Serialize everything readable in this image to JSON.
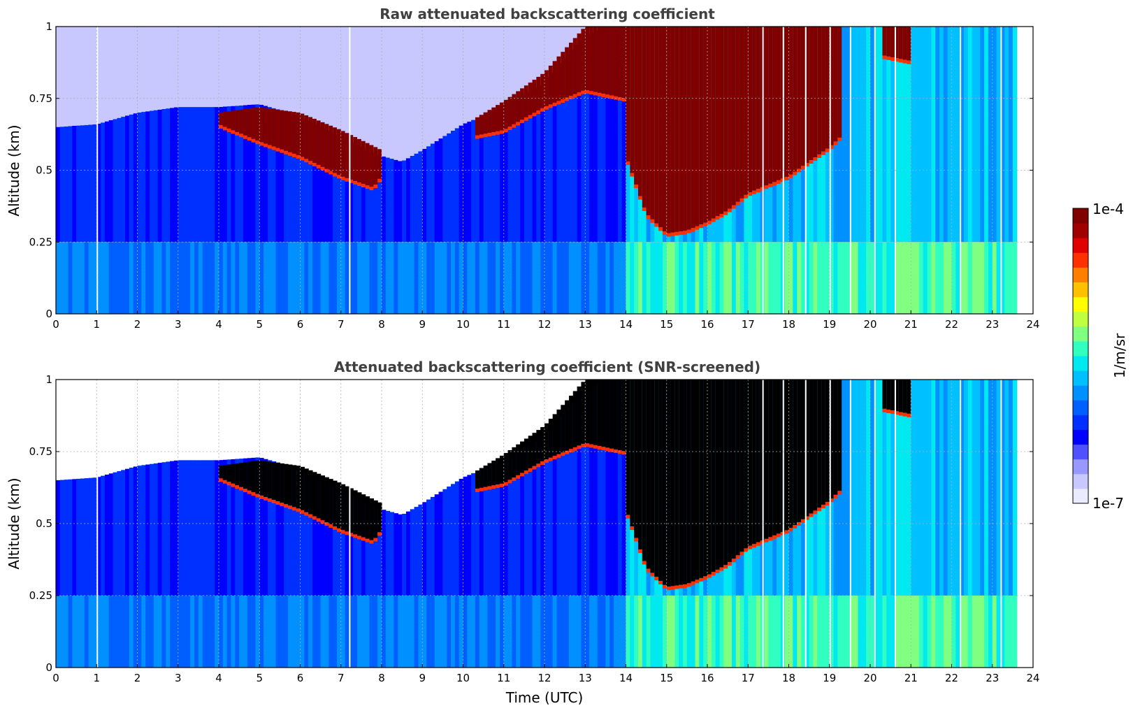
{
  "chart_data": [
    {
      "type": "heatmap",
      "title": "Raw attenuated backscattering coefficient",
      "xlabel": "",
      "ylabel": "Altitude (km)",
      "xlim": [
        0,
        24
      ],
      "ylim": [
        0,
        1
      ],
      "xticks": [
        "0",
        "1",
        "2",
        "3",
        "4",
        "5",
        "6",
        "7",
        "8",
        "9",
        "10",
        "11",
        "12",
        "13",
        "14",
        "15",
        "16",
        "17",
        "18",
        "19",
        "20",
        "21",
        "22",
        "23",
        "24"
      ],
      "yticks": [
        "0",
        "0.25",
        "0.5",
        "0.75",
        "1"
      ],
      "grid": true,
      "data_end_hour": 23.6,
      "screened": false,
      "features": {
        "boundary_layer_top_km": [
          [
            0,
            0.65
          ],
          [
            1,
            0.66
          ],
          [
            2,
            0.7
          ],
          [
            3,
            0.72
          ],
          [
            4,
            0.72
          ],
          [
            5,
            0.73
          ],
          [
            6,
            0.69
          ],
          [
            7,
            0.62
          ],
          [
            8,
            0.55
          ],
          [
            8.5,
            0.53
          ],
          [
            9,
            0.57
          ],
          [
            10,
            0.66
          ],
          [
            10.5,
            0.69
          ],
          [
            11,
            0.72
          ],
          [
            12,
            0.8
          ],
          [
            12.5,
            0.88
          ],
          [
            13,
            0.96
          ],
          [
            13.5,
            1.0
          ],
          [
            14,
            1.0
          ],
          [
            24,
            1.0
          ]
        ],
        "cloud_layers": [
          {
            "start_h": 4.0,
            "end_h": 8.0,
            "base_km": [
              [
                4,
                0.66
              ],
              [
                5,
                0.6
              ],
              [
                6,
                0.55
              ],
              [
                7,
                0.48
              ],
              [
                7.8,
                0.44
              ],
              [
                8,
                0.48
              ]
            ],
            "top_km": [
              [
                4,
                0.7
              ],
              [
                5,
                0.72
              ],
              [
                6,
                0.7
              ],
              [
                7,
                0.64
              ],
              [
                8,
                0.57
              ]
            ]
          },
          {
            "start_h": 10.3,
            "end_h": 14.0,
            "base_km": [
              [
                10.3,
                0.62
              ],
              [
                11,
                0.64
              ],
              [
                12,
                0.72
              ],
              [
                13,
                0.78
              ],
              [
                14,
                0.75
              ]
            ],
            "top_km": [
              [
                10.3,
                0.68
              ],
              [
                11,
                0.74
              ],
              [
                12,
                0.84
              ],
              [
                13,
                1.0
              ],
              [
                14,
                1.0
              ]
            ]
          },
          {
            "start_h": 14.0,
            "end_h": 19.3,
            "base_km": [
              [
                14,
                0.55
              ],
              [
                14.5,
                0.35
              ],
              [
                15,
                0.28
              ],
              [
                15.5,
                0.29
              ],
              [
                16,
                0.32
              ],
              [
                16.5,
                0.36
              ],
              [
                17,
                0.42
              ],
              [
                18,
                0.48
              ],
              [
                18.5,
                0.53
              ],
              [
                19,
                0.58
              ],
              [
                19.3,
                0.62
              ]
            ],
            "top_km": [
              [
                14,
                1.0
              ],
              [
                19.3,
                1.0
              ]
            ]
          },
          {
            "start_h": 20.3,
            "end_h": 21.0,
            "base_km": [
              [
                20.3,
                0.9
              ],
              [
                21,
                0.88
              ]
            ],
            "top_km": [
              [
                20.3,
                1.0
              ],
              [
                21,
                1.0
              ]
            ]
          }
        ],
        "data_gaps_h": [
          1.0,
          7.2,
          17.35,
          17.85,
          18.4,
          19.0,
          19.5,
          20.1,
          20.6,
          22.2,
          23.2
        ]
      }
    },
    {
      "type": "heatmap",
      "title": "Attenuated backscattering coefficient (SNR-screened)",
      "xlabel": "Time (UTC)",
      "ylabel": "Altitude (km)",
      "xlim": [
        0,
        24
      ],
      "ylim": [
        0,
        1
      ],
      "xticks": [
        "0",
        "1",
        "2",
        "3",
        "4",
        "5",
        "6",
        "7",
        "8",
        "9",
        "10",
        "11",
        "12",
        "13",
        "14",
        "15",
        "16",
        "17",
        "18",
        "19",
        "20",
        "21",
        "22",
        "23",
        "24"
      ],
      "yticks": [
        "0",
        "0.25",
        "0.5",
        "0.75",
        "1"
      ],
      "grid": true,
      "data_end_hour": 23.6,
      "screened": true,
      "saturated_color": "#000000"
    }
  ],
  "colorbar": {
    "label": "1/m/sr",
    "max_label": "1e-4",
    "min_label": "1e-7",
    "colors": [
      "#ebebff",
      "#c8c8ff",
      "#9898ff",
      "#5050ff",
      "#0000ff",
      "#0030ff",
      "#0060ff",
      "#0090ff",
      "#00c0ff",
      "#00e8f0",
      "#30ffc0",
      "#80ff80",
      "#c0ff40",
      "#ffff00",
      "#ffc000",
      "#ff8000",
      "#ff3000",
      "#e00000",
      "#a00000",
      "#800000"
    ]
  }
}
